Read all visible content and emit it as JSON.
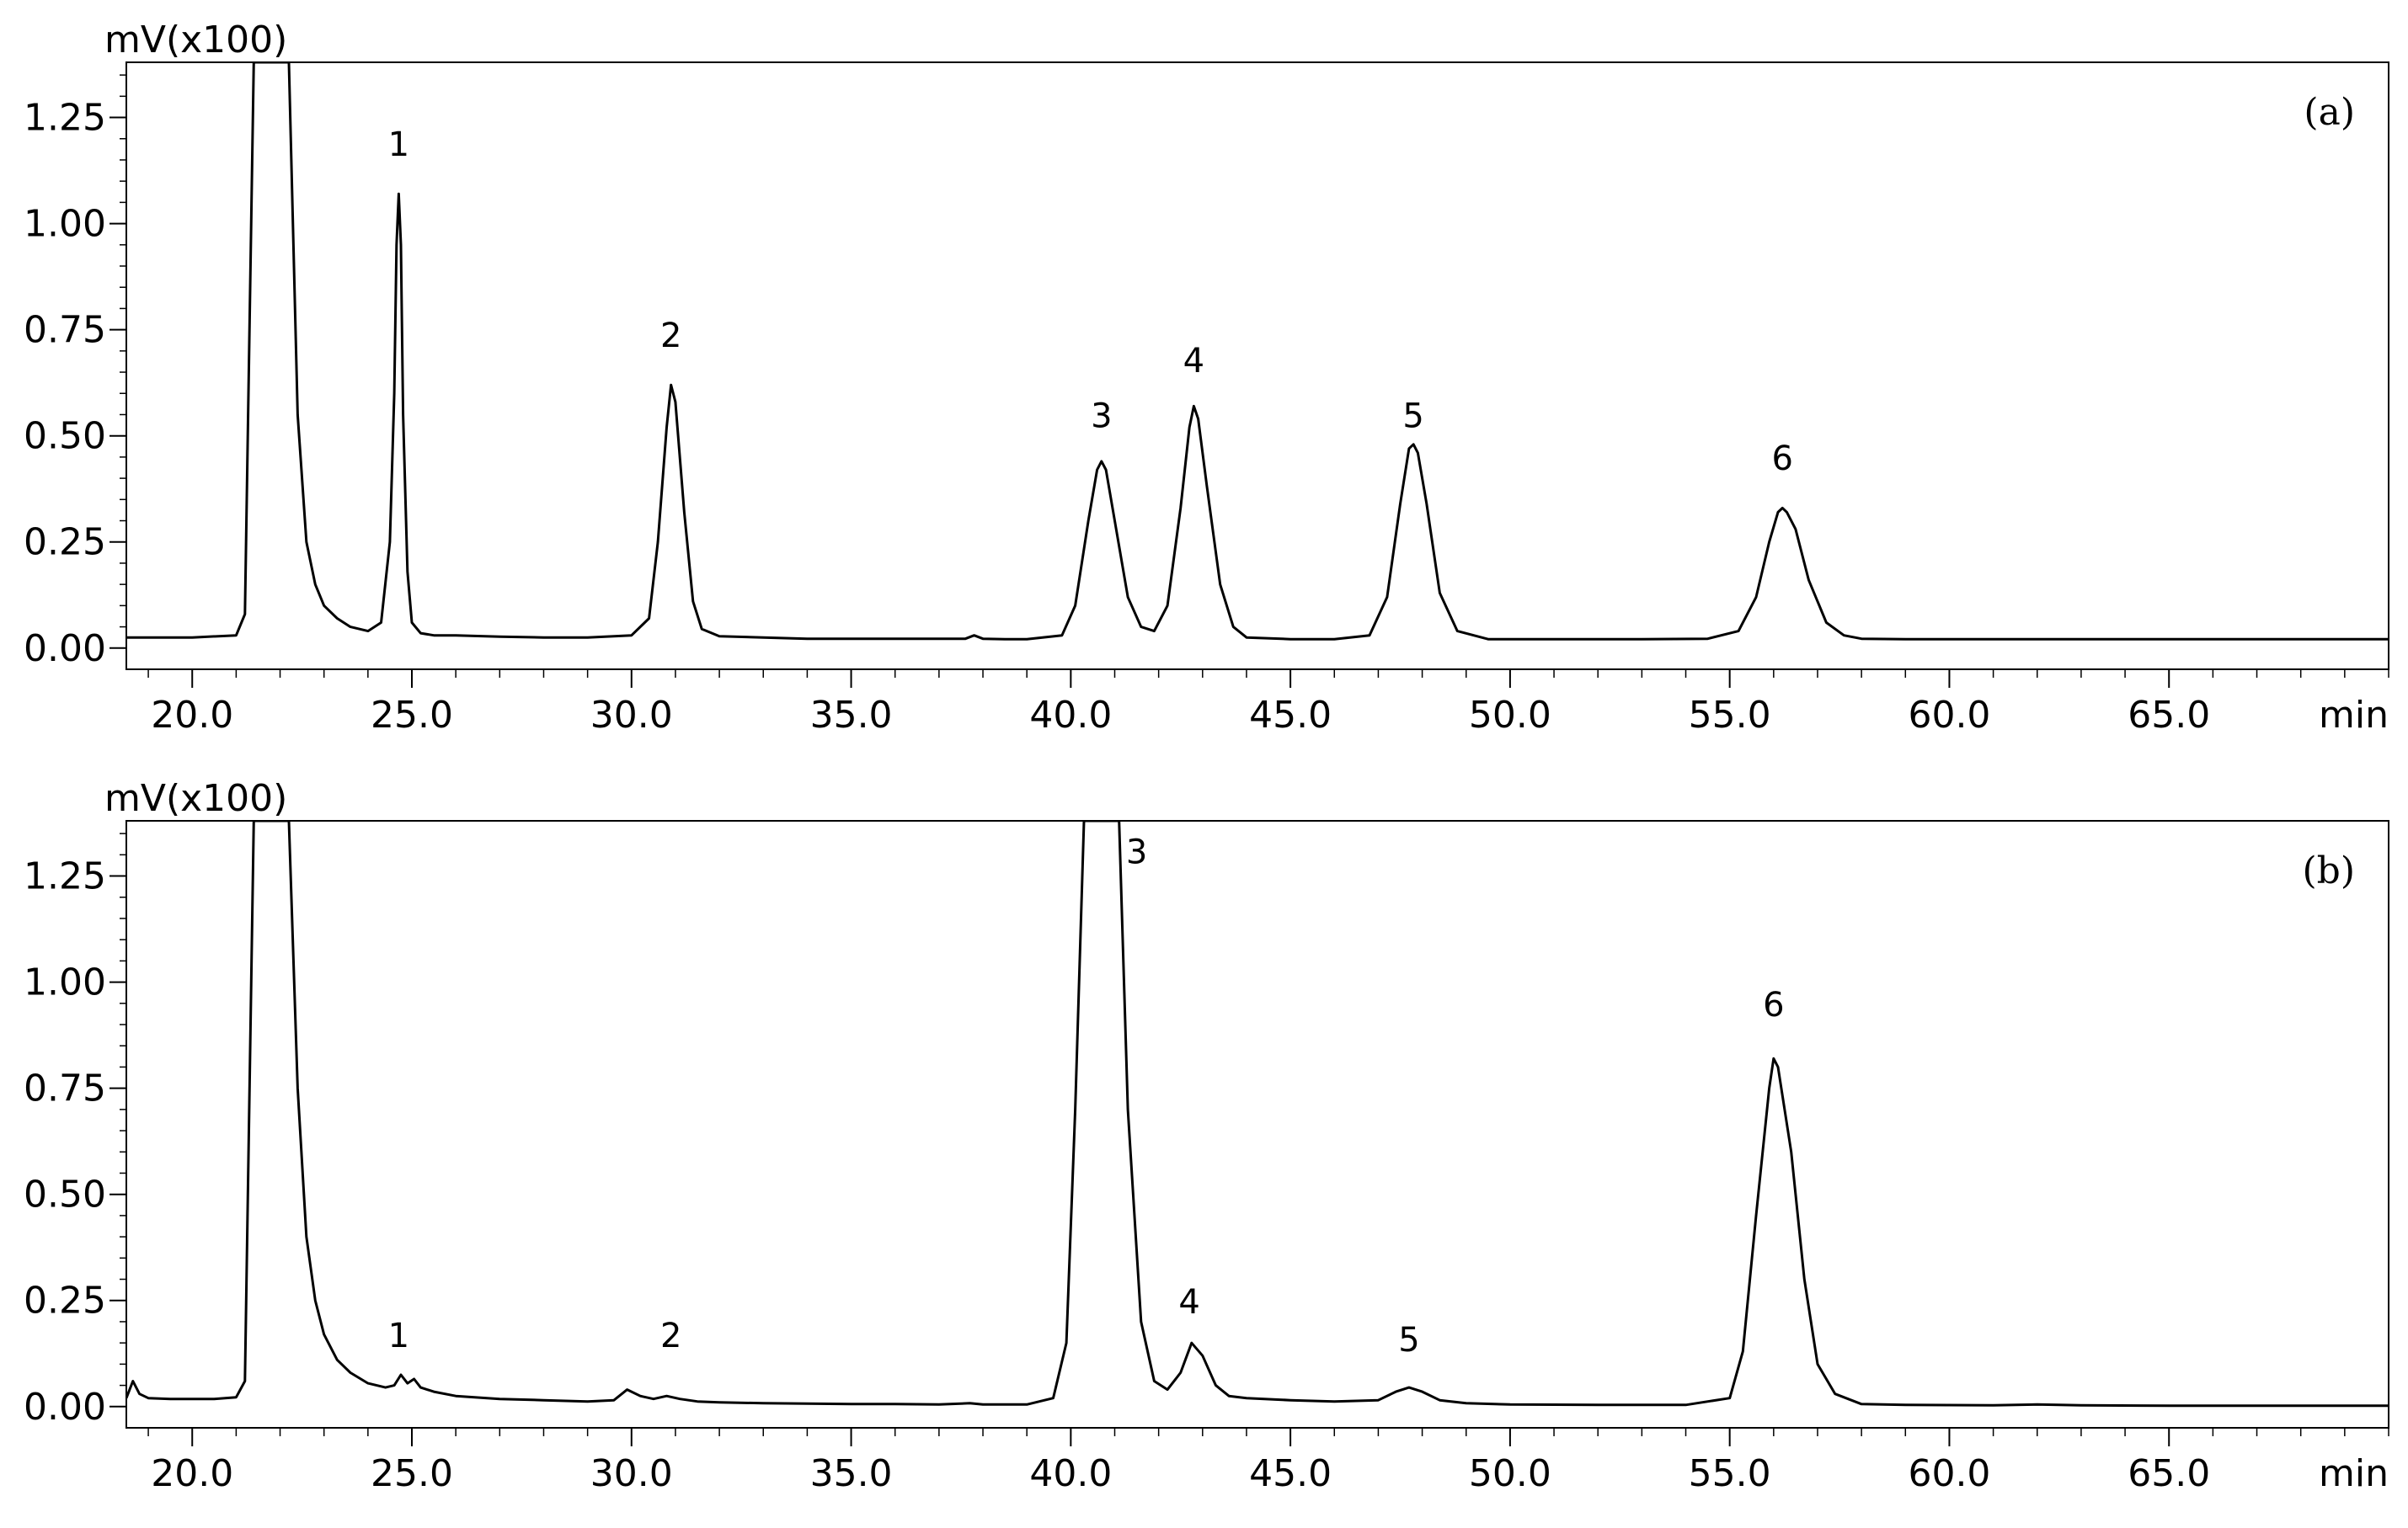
{
  "chart_data": [
    {
      "type": "line",
      "panel_label": "(a)",
      "ylabel": "mV(x100)",
      "xlabel": "min",
      "xlim": [
        18.5,
        70
      ],
      "ylim": [
        -0.05,
        1.38
      ],
      "x_ticks": [
        20.0,
        25.0,
        30.0,
        35.0,
        40.0,
        45.0,
        50.0,
        55.0,
        60.0,
        65.0
      ],
      "x_tick_labels": [
        "20.0",
        "25.0",
        "30.0",
        "35.0",
        "40.0",
        "45.0",
        "50.0",
        "55.0",
        "60.0",
        "65.0"
      ],
      "y_ticks": [
        0.0,
        0.25,
        0.5,
        0.75,
        1.0,
        1.25
      ],
      "y_tick_labels": [
        "0.00",
        "0.25",
        "0.50",
        "0.75",
        "1.00",
        "1.25"
      ],
      "peak_labels": [
        {
          "label": "1",
          "x": 24.7,
          "y": 1.16
        },
        {
          "label": "2",
          "x": 30.9,
          "y": 0.71
        },
        {
          "label": "3",
          "x": 40.7,
          "y": 0.52
        },
        {
          "label": "4",
          "x": 42.8,
          "y": 0.65
        },
        {
          "label": "5",
          "x": 47.8,
          "y": 0.52
        },
        {
          "label": "6",
          "x": 56.2,
          "y": 0.42
        }
      ],
      "series": [
        {
          "x": [
            18.5,
            19.0,
            20.0,
            21.0,
            21.2,
            21.4,
            21.6,
            21.8,
            22.0,
            22.2,
            22.4,
            22.6,
            22.8,
            23.0,
            23.3,
            23.6,
            24.0,
            24.3,
            24.5,
            24.6,
            24.65,
            24.7,
            24.75,
            24.8,
            24.9,
            25.0,
            25.2,
            25.5,
            26.0,
            27.0,
            28.0,
            29.0,
            30.0,
            30.4,
            30.6,
            30.8,
            30.9,
            31.0,
            31.2,
            31.4,
            31.6,
            32.0,
            33.0,
            34.0,
            35.0,
            36.0,
            37.0,
            37.6,
            37.8,
            38.0,
            38.5,
            39.0,
            39.8,
            40.1,
            40.4,
            40.6,
            40.7,
            40.8,
            41.0,
            41.3,
            41.6,
            41.9,
            42.2,
            42.5,
            42.7,
            42.8,
            42.9,
            43.1,
            43.4,
            43.7,
            44.0,
            45.0,
            46.0,
            46.8,
            47.2,
            47.5,
            47.7,
            47.8,
            47.9,
            48.1,
            48.4,
            48.8,
            49.5,
            51.0,
            53.0,
            54.5,
            55.2,
            55.6,
            55.9,
            56.1,
            56.2,
            56.3,
            56.5,
            56.8,
            57.2,
            57.6,
            58.0,
            59.0,
            61.0,
            63.0,
            65.0,
            67.0,
            69.0,
            70.0
          ],
          "y": [
            0.025,
            0.025,
            0.025,
            0.03,
            0.08,
            1.38,
            1.38,
            1.38,
            1.38,
            1.38,
            0.55,
            0.25,
            0.15,
            0.1,
            0.07,
            0.05,
            0.04,
            0.06,
            0.25,
            0.6,
            0.95,
            1.07,
            0.95,
            0.55,
            0.18,
            0.06,
            0.035,
            0.03,
            0.03,
            0.027,
            0.025,
            0.025,
            0.03,
            0.07,
            0.25,
            0.52,
            0.62,
            0.58,
            0.32,
            0.11,
            0.045,
            0.028,
            0.025,
            0.022,
            0.022,
            0.022,
            0.022,
            0.022,
            0.03,
            0.022,
            0.021,
            0.021,
            0.03,
            0.1,
            0.3,
            0.42,
            0.44,
            0.42,
            0.3,
            0.12,
            0.05,
            0.04,
            0.1,
            0.33,
            0.52,
            0.57,
            0.54,
            0.38,
            0.15,
            0.05,
            0.025,
            0.021,
            0.021,
            0.03,
            0.12,
            0.34,
            0.47,
            0.48,
            0.46,
            0.34,
            0.13,
            0.04,
            0.021,
            0.021,
            0.021,
            0.022,
            0.04,
            0.12,
            0.25,
            0.32,
            0.33,
            0.32,
            0.28,
            0.16,
            0.06,
            0.03,
            0.022,
            0.021,
            0.021,
            0.021,
            0.021,
            0.021,
            0.021,
            0.021
          ]
        }
      ]
    },
    {
      "type": "line",
      "panel_label": "(b)",
      "ylabel": "mV(x100)",
      "xlabel": "min",
      "xlim": [
        18.5,
        70
      ],
      "ylim": [
        -0.05,
        1.38
      ],
      "x_ticks": [
        20.0,
        25.0,
        30.0,
        35.0,
        40.0,
        45.0,
        50.0,
        55.0,
        60.0,
        65.0
      ],
      "x_tick_labels": [
        "20.0",
        "25.0",
        "30.0",
        "35.0",
        "40.0",
        "45.0",
        "50.0",
        "55.0",
        "60.0",
        "65.0"
      ],
      "y_ticks": [
        0.0,
        0.25,
        0.5,
        0.75,
        1.0,
        1.25
      ],
      "y_tick_labels": [
        "0.00",
        "0.25",
        "0.50",
        "0.75",
        "1.00",
        "1.25"
      ],
      "peak_labels": [
        {
          "label": "1",
          "x": 24.7,
          "y": 0.14
        },
        {
          "label": "2",
          "x": 30.9,
          "y": 0.14
        },
        {
          "label": "3",
          "x": 41.5,
          "y": 1.28
        },
        {
          "label": "4",
          "x": 42.7,
          "y": 0.22
        },
        {
          "label": "5",
          "x": 47.7,
          "y": 0.13
        },
        {
          "label": "6",
          "x": 56.0,
          "y": 0.92
        }
      ],
      "series": [
        {
          "x": [
            18.5,
            18.65,
            18.8,
            19.0,
            19.5,
            20.0,
            20.5,
            21.0,
            21.2,
            21.4,
            21.6,
            21.8,
            22.0,
            22.2,
            22.4,
            22.6,
            22.8,
            23.0,
            23.3,
            23.6,
            24.0,
            24.4,
            24.6,
            24.75,
            24.9,
            25.05,
            25.2,
            25.5,
            26.0,
            27.0,
            28.0,
            29.0,
            29.6,
            29.9,
            30.2,
            30.5,
            30.8,
            31.1,
            31.5,
            32.0,
            33.0,
            34.0,
            35.0,
            36.0,
            37.0,
            37.7,
            38.0,
            39.0,
            39.6,
            39.9,
            40.1,
            40.3,
            40.5,
            40.7,
            40.9,
            41.1,
            41.3,
            41.6,
            41.9,
            42.2,
            42.5,
            42.75,
            43.0,
            43.3,
            43.6,
            44.0,
            45.0,
            46.0,
            47.0,
            47.4,
            47.7,
            48.0,
            48.4,
            49.0,
            50.0,
            52.0,
            54.0,
            55.0,
            55.3,
            55.6,
            55.9,
            56.0,
            56.1,
            56.4,
            56.7,
            57.0,
            57.4,
            58.0,
            59.0,
            61.0,
            62.0,
            63.0,
            65.0,
            67.0,
            69.0,
            70.0
          ],
          "y": [
            0.02,
            0.06,
            0.03,
            0.02,
            0.018,
            0.018,
            0.018,
            0.022,
            0.06,
            1.38,
            1.38,
            1.38,
            1.38,
            1.38,
            0.75,
            0.4,
            0.25,
            0.17,
            0.11,
            0.08,
            0.055,
            0.045,
            0.05,
            0.075,
            0.055,
            0.065,
            0.045,
            0.035,
            0.025,
            0.018,
            0.015,
            0.012,
            0.015,
            0.04,
            0.025,
            0.018,
            0.025,
            0.018,
            0.012,
            0.01,
            0.008,
            0.007,
            0.006,
            0.006,
            0.005,
            0.008,
            0.005,
            0.005,
            0.02,
            0.15,
            0.7,
            1.38,
            1.38,
            1.38,
            1.38,
            1.38,
            0.7,
            0.2,
            0.06,
            0.04,
            0.08,
            0.15,
            0.12,
            0.05,
            0.025,
            0.02,
            0.015,
            0.012,
            0.015,
            0.035,
            0.045,
            0.035,
            0.015,
            0.008,
            0.005,
            0.004,
            0.004,
            0.02,
            0.13,
            0.45,
            0.75,
            0.82,
            0.8,
            0.6,
            0.3,
            0.1,
            0.03,
            0.006,
            0.004,
            0.003,
            0.005,
            0.003,
            0.002,
            0.002,
            0.002,
            0.002
          ]
        }
      ]
    }
  ]
}
